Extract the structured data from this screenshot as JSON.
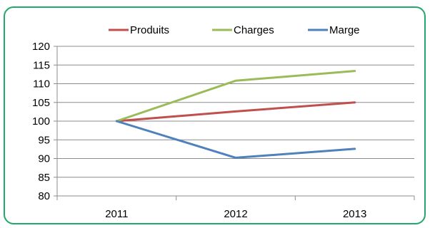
{
  "chart_data": {
    "type": "line",
    "title": "",
    "xlabel": "",
    "ylabel": "",
    "categories": [
      "2011",
      "2012",
      "2013"
    ],
    "ylim": [
      80,
      120
    ],
    "yticks": [
      "80",
      "85",
      "90",
      "95",
      "100",
      "105",
      "110",
      "115",
      "120"
    ],
    "grid": true,
    "legend_position": "top",
    "series": [
      {
        "name": "Produits",
        "values": [
          100,
          102.6,
          105
        ],
        "color": "#c0504d"
      },
      {
        "name": "Charges",
        "values": [
          100,
          110.8,
          113.4
        ],
        "color": "#9bbb59"
      },
      {
        "name": "Marge",
        "values": [
          100,
          90.2,
          92.6
        ],
        "color": "#4f81bd"
      }
    ]
  }
}
